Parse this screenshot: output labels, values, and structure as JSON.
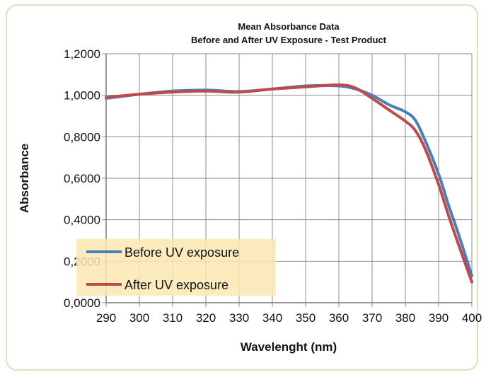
{
  "chart_data": {
    "type": "line",
    "title": "Mean  Absorbance Data",
    "subtitle": "Before and After UV Exposure - Test Product",
    "xlabel": "Wavelenght (nm)",
    "ylabel": "Absorbance",
    "xlim": [
      290,
      400
    ],
    "ylim": [
      0,
      1.2
    ],
    "x_ticks": [
      "290",
      "300",
      "310",
      "320",
      "330",
      "340",
      "350",
      "360",
      "370",
      "380",
      "390",
      "400"
    ],
    "y_ticks": [
      "0,0000",
      "0,2000",
      "0,4000",
      "0,6000",
      "0,8000",
      "1,0000",
      "1,2000"
    ],
    "grid": true,
    "legend_position": "bottom-left",
    "series": [
      {
        "name": "Before UV exposure",
        "color": "#4a7ebb",
        "x": [
          290,
          300,
          310,
          320,
          330,
          340,
          350,
          360,
          365,
          370,
          375,
          380,
          383,
          386,
          390,
          393,
          396,
          400
        ],
        "y": [
          0.985,
          1.005,
          1.02,
          1.025,
          1.018,
          1.03,
          1.045,
          1.045,
          1.03,
          1.0,
          0.955,
          0.92,
          0.88,
          0.78,
          0.62,
          0.47,
          0.33,
          0.13
        ]
      },
      {
        "name": "After UV exposure",
        "color": "#be4b48",
        "x": [
          290,
          300,
          310,
          320,
          330,
          340,
          350,
          360,
          365,
          370,
          375,
          380,
          383,
          386,
          390,
          393,
          396,
          400
        ],
        "y": [
          0.99,
          1.005,
          1.015,
          1.02,
          1.015,
          1.03,
          1.04,
          1.05,
          1.035,
          0.985,
          0.93,
          0.875,
          0.83,
          0.74,
          0.57,
          0.42,
          0.28,
          0.1
        ]
      }
    ]
  }
}
